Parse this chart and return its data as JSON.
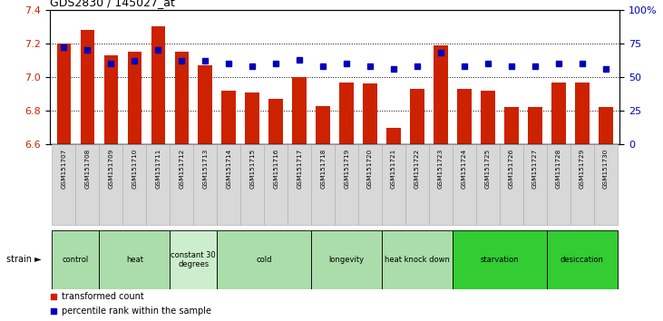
{
  "title": "GDS2830 / 145027_at",
  "samples": [
    "GSM151707",
    "GSM151708",
    "GSM151709",
    "GSM151710",
    "GSM151711",
    "GSM151712",
    "GSM151713",
    "GSM151714",
    "GSM151715",
    "GSM151716",
    "GSM151717",
    "GSM151718",
    "GSM151719",
    "GSM151720",
    "GSM151721",
    "GSM151722",
    "GSM151723",
    "GSM151724",
    "GSM151725",
    "GSM151726",
    "GSM151727",
    "GSM151728",
    "GSM151729",
    "GSM151730"
  ],
  "bar_values": [
    7.2,
    7.28,
    7.13,
    7.15,
    7.3,
    7.15,
    7.07,
    6.92,
    6.91,
    6.87,
    7.0,
    6.83,
    6.97,
    6.96,
    6.7,
    6.93,
    7.19,
    6.93,
    6.92,
    6.82,
    6.82,
    6.97,
    6.97,
    6.82
  ],
  "percentile_values": [
    72,
    70,
    60,
    62,
    70,
    62,
    62,
    60,
    58,
    60,
    63,
    58,
    60,
    58,
    56,
    58,
    68,
    58,
    60,
    58,
    58,
    60,
    60,
    56
  ],
  "ylim_left": [
    6.6,
    7.4
  ],
  "ylim_right": [
    0,
    100
  ],
  "yticks_left": [
    6.6,
    6.8,
    7.0,
    7.2,
    7.4
  ],
  "yticks_right": [
    0,
    25,
    50,
    75,
    100
  ],
  "ytick_right_labels": [
    "0",
    "25",
    "50",
    "75",
    "100%"
  ],
  "bar_color": "#cc2200",
  "dot_color": "#0000bb",
  "bar_bottom": 6.6,
  "groups": [
    {
      "label": "control",
      "start": 0,
      "end": 1,
      "color": "#aaddaa"
    },
    {
      "label": "heat",
      "start": 2,
      "end": 4,
      "color": "#aaddaa"
    },
    {
      "label": "constant 30\ndegrees",
      "start": 5,
      "end": 6,
      "color": "#cceecc"
    },
    {
      "label": "cold",
      "start": 7,
      "end": 10,
      "color": "#aaddaa"
    },
    {
      "label": "longevity",
      "start": 11,
      "end": 13,
      "color": "#aaddaa"
    },
    {
      "label": "heat knock down",
      "start": 14,
      "end": 16,
      "color": "#aaddaa"
    },
    {
      "label": "starvation",
      "start": 17,
      "end": 20,
      "color": "#33cc33"
    },
    {
      "label": "desiccation",
      "start": 21,
      "end": 23,
      "color": "#33cc33"
    }
  ],
  "legend_items": [
    {
      "label": "transformed count",
      "color": "#cc2200"
    },
    {
      "label": "percentile rank within the sample",
      "color": "#0000bb"
    }
  ],
  "tick_label_color_left": "#cc2200",
  "tick_label_color_right": "#0000bb",
  "strain_label": "strain",
  "title_fontsize": 9
}
